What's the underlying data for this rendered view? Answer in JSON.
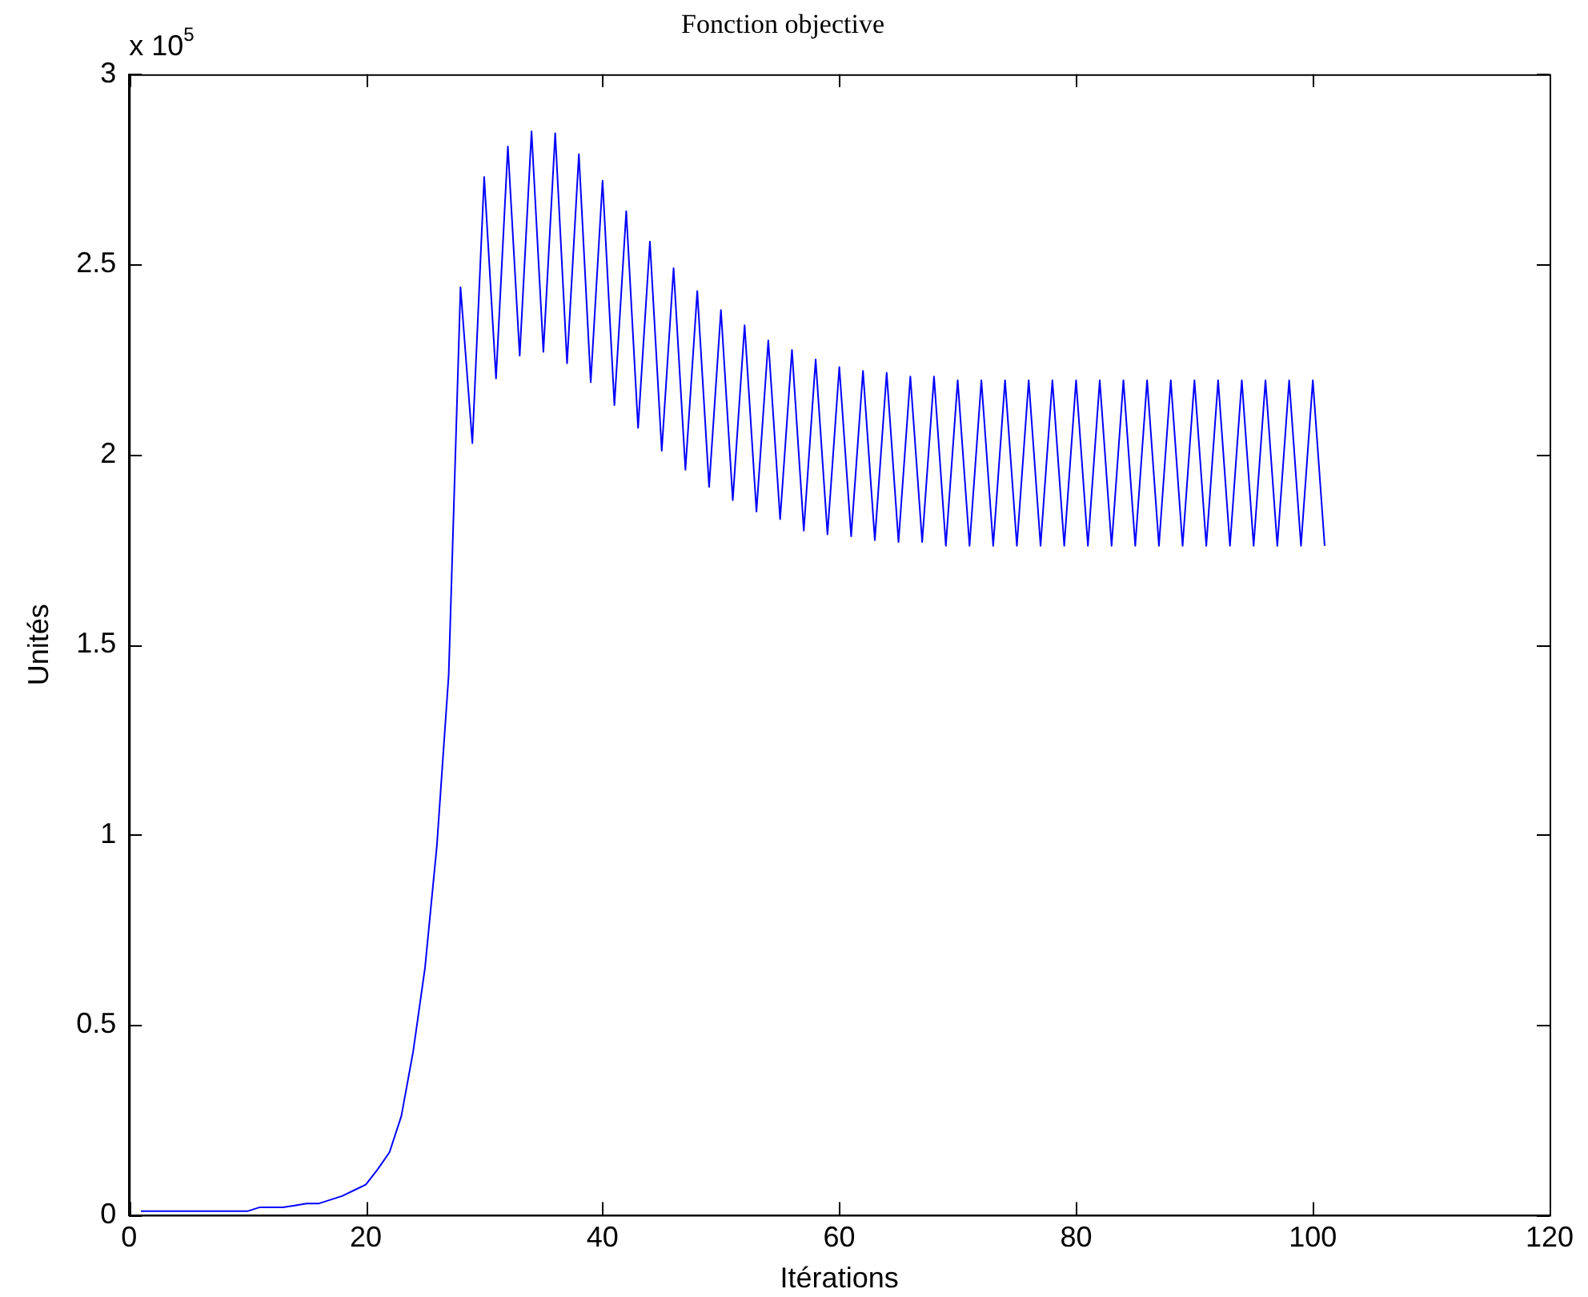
{
  "chart_data": {
    "type": "line",
    "title": "Fonction objective",
    "xlabel": "Itérations",
    "ylabel": "Unités",
    "annotations": [
      "x 10$^{5}$"
    ],
    "x": [
      1,
      2,
      3,
      4,
      5,
      6,
      7,
      8,
      9,
      10,
      11,
      12,
      13,
      14,
      15,
      16,
      17,
      18,
      19,
      20,
      21,
      22,
      23,
      24,
      25,
      26,
      27,
      28,
      29,
      30,
      31,
      32,
      33,
      34,
      35,
      36,
      37,
      38,
      39,
      40,
      41,
      42,
      43,
      44,
      45,
      46,
      47,
      48,
      49,
      50,
      51,
      52,
      53,
      54,
      55,
      56,
      57,
      58,
      59,
      60,
      61,
      62,
      63,
      64,
      65,
      66,
      67,
      68,
      69,
      70,
      71,
      72,
      73,
      74,
      75,
      76,
      77,
      78,
      79,
      80,
      81,
      82,
      83,
      84,
      85,
      86,
      87,
      88,
      89,
      90,
      91,
      92,
      93,
      94,
      95,
      96,
      97,
      98,
      99,
      100,
      101
    ],
    "series": [
      {
        "color": "#0000ff",
        "values": [
          0.01,
          0.01,
          0.01,
          0.01,
          0.01,
          0.01,
          0.01,
          0.01,
          0.01,
          0.01,
          0.02,
          0.02,
          0.02,
          0.025,
          0.03,
          0.03,
          0.04,
          0.05,
          0.065,
          0.08,
          0.12,
          0.165,
          0.26,
          0.43,
          0.65,
          0.97,
          1.42,
          2.44,
          2.03,
          2.73,
          2.2,
          2.81,
          2.26,
          2.85,
          2.27,
          2.845,
          2.24,
          2.79,
          2.19,
          2.72,
          2.13,
          2.64,
          2.07,
          2.56,
          2.01,
          2.49,
          1.96,
          2.43,
          1.915,
          2.38,
          1.88,
          2.34,
          1.85,
          2.3,
          1.83,
          2.275,
          1.8,
          2.25,
          1.79,
          2.23,
          1.785,
          2.22,
          1.775,
          2.215,
          1.77,
          2.205,
          1.77,
          2.205,
          1.76,
          2.195,
          1.76,
          2.195,
          1.76,
          2.195,
          1.76,
          2.195,
          1.76,
          2.195,
          1.76,
          2.195,
          1.76,
          2.195,
          1.76,
          2.195,
          1.76,
          2.195,
          1.76,
          2.195,
          1.76,
          2.195,
          1.76,
          2.195,
          1.76,
          2.195,
          1.76,
          2.195,
          1.76,
          2.195,
          1.76,
          2.195,
          1.76
        ]
      }
    ],
    "xlim": [
      0,
      120
    ],
    "xticks": [
      0,
      20,
      40,
      60,
      80,
      100,
      120
    ],
    "ylim": [
      0,
      3
    ],
    "yticks": [
      0,
      0.5,
      1,
      1.5,
      2,
      2.5,
      3
    ],
    "grid": false,
    "legend": false,
    "marker": "none",
    "line_style": "solid"
  }
}
